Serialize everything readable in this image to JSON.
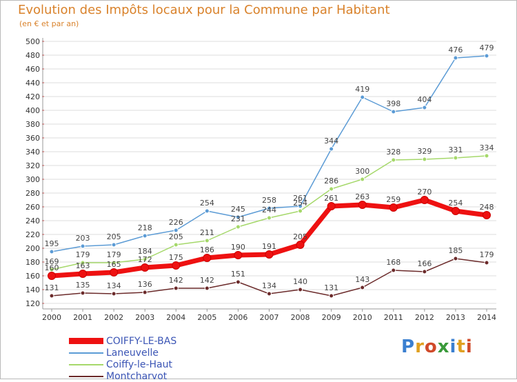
{
  "header": {
    "title": "Evolution des Impôts locaux pour la Commune par Habitant",
    "subtitle": "(en € et par an)"
  },
  "logo": {
    "text": "Proxiti"
  },
  "colors": {
    "title": "#d9822b",
    "legend_text": "#3b55b5",
    "grid": "#dcdcdc",
    "axis_tick_mark": "#cc3333"
  },
  "chart_data": {
    "type": "line",
    "title": "Evolution des Impôts locaux pour la Commune par Habitant",
    "subtitle": "(en € et par an)",
    "x": [
      "2000",
      "2001",
      "2002",
      "2003",
      "2004",
      "2005",
      "2006",
      "2007",
      "2008",
      "2009",
      "2010",
      "2011",
      "2012",
      "2013",
      "2014"
    ],
    "ylim": [
      120,
      500
    ],
    "yticks": [
      120,
      140,
      160,
      180,
      200,
      220,
      240,
      260,
      280,
      300,
      320,
      340,
      360,
      380,
      400,
      420,
      440,
      460,
      480,
      500
    ],
    "grid": true,
    "legend_position": "bottom-left",
    "series": [
      {
        "name": "COIFFY-LE-BAS",
        "color": "#ee1111",
        "values": [
          160,
          163,
          165,
          172,
          175,
          186,
          190,
          191,
          205,
          261,
          263,
          259,
          270,
          254,
          248
        ]
      },
      {
        "name": "Laneuvelle",
        "color": "#5b9bd5",
        "values": [
          195,
          203,
          205,
          218,
          226,
          254,
          245,
          258,
          261,
          344,
          419,
          398,
          404,
          476,
          479
        ]
      },
      {
        "name": "Coiffy-le-Haut",
        "color": "#a5d86a",
        "values": [
          169,
          179,
          179,
          184,
          205,
          211,
          231,
          244,
          254,
          286,
          300,
          328,
          329,
          331,
          334
        ]
      },
      {
        "name": "Montcharvot",
        "color": "#6b2a2a",
        "values": [
          131,
          135,
          134,
          136,
          142,
          142,
          151,
          134,
          140,
          131,
          143,
          168,
          166,
          185,
          179
        ]
      }
    ]
  }
}
